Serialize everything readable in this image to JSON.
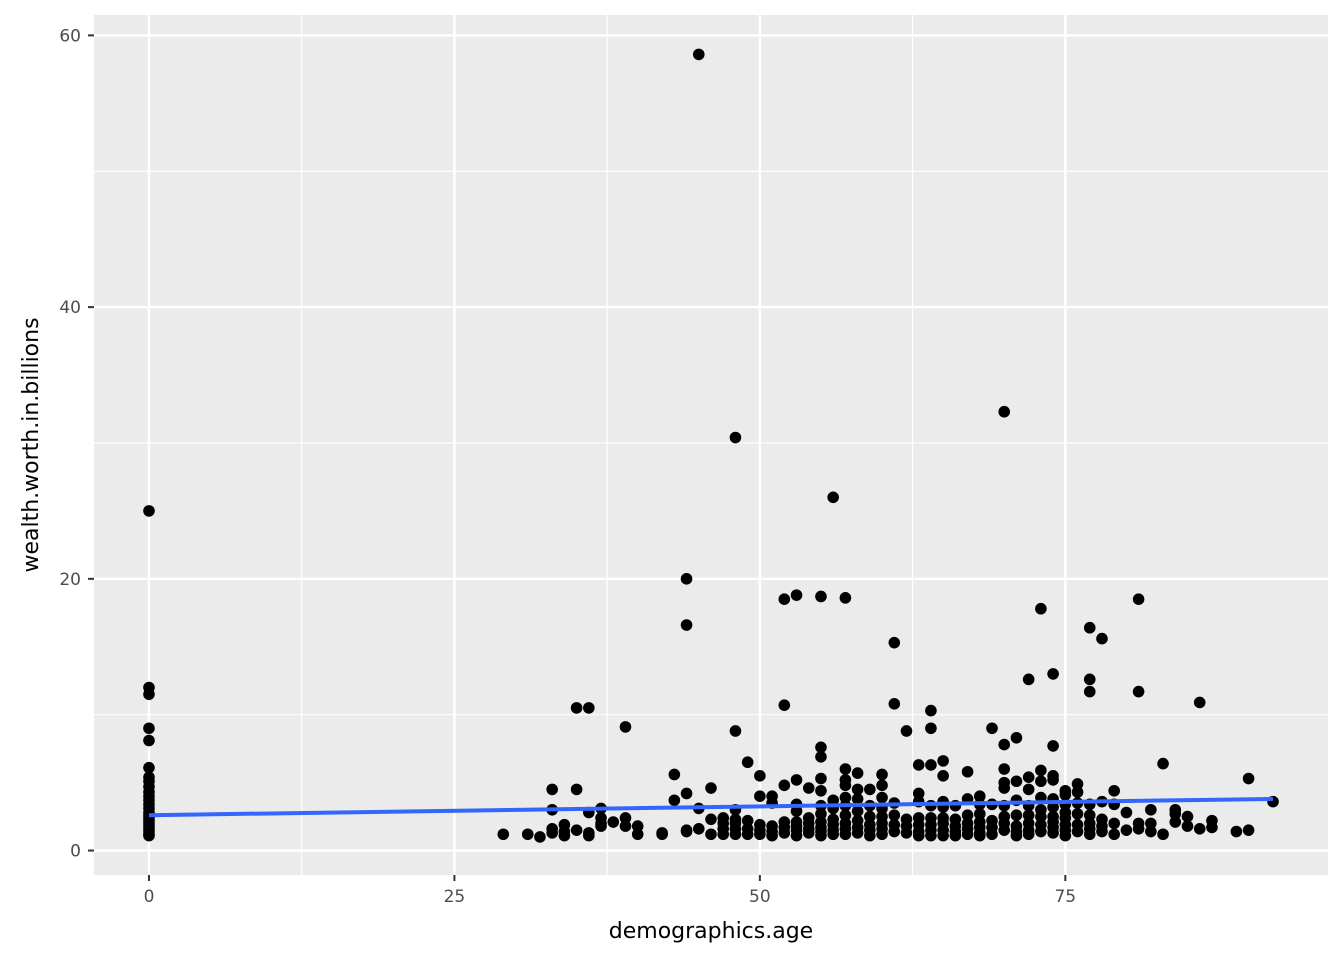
{
  "chart_data": {
    "type": "scatter",
    "title": "",
    "xlabel": "demographics.age",
    "ylabel": "wealth.worth.in.billions",
    "xlim": [
      -4.5,
      96.5
    ],
    "ylim": [
      -1.8,
      61.5
    ],
    "x_ticks": [
      0,
      25,
      50,
      75
    ],
    "x_tick_labels": [
      "0",
      "25",
      "50",
      "75"
    ],
    "y_ticks": [
      0,
      20,
      40,
      60
    ],
    "y_tick_labels": [
      "0",
      "20",
      "40",
      "60"
    ],
    "grid": true,
    "panel_background": "#ebebeb",
    "grid_color": "#ffffff",
    "point_color": "#000000",
    "trend_line": {
      "method": "linear",
      "color": "#3366ff",
      "x": [
        0,
        92
      ],
      "y": [
        2.6,
        3.8
      ]
    },
    "points": [
      [
        0,
        25.0
      ],
      [
        0,
        12.0
      ],
      [
        0,
        11.5
      ],
      [
        0,
        9.0
      ],
      [
        0,
        8.1
      ],
      [
        0,
        6.1
      ],
      [
        0,
        5.4
      ],
      [
        0,
        5.1
      ],
      [
        0,
        4.7
      ],
      [
        0,
        4.3
      ],
      [
        0,
        4.0
      ],
      [
        0,
        3.7
      ],
      [
        0,
        3.4
      ],
      [
        0,
        3.1
      ],
      [
        0,
        2.8
      ],
      [
        0,
        2.6
      ],
      [
        0,
        2.4
      ],
      [
        0,
        2.2
      ],
      [
        0,
        2.0
      ],
      [
        0,
        1.8
      ],
      [
        0,
        1.6
      ],
      [
        0,
        1.4
      ],
      [
        0,
        1.2
      ],
      [
        0,
        1.1
      ],
      [
        29,
        1.2
      ],
      [
        31,
        1.2
      ],
      [
        32,
        1.0
      ],
      [
        33,
        4.5
      ],
      [
        33,
        3.0
      ],
      [
        33,
        1.6
      ],
      [
        33,
        1.3
      ],
      [
        34,
        1.9
      ],
      [
        34,
        1.4
      ],
      [
        34,
        1.1
      ],
      [
        35,
        10.5
      ],
      [
        35,
        4.5
      ],
      [
        35,
        1.5
      ],
      [
        36,
        10.5
      ],
      [
        36,
        2.8
      ],
      [
        36,
        1.3
      ],
      [
        36,
        1.1
      ],
      [
        37,
        3.1
      ],
      [
        37,
        2.4
      ],
      [
        37,
        2.0
      ],
      [
        37,
        1.8
      ],
      [
        38,
        2.1
      ],
      [
        39,
        9.1
      ],
      [
        39,
        2.4
      ],
      [
        39,
        1.8
      ],
      [
        40,
        1.8
      ],
      [
        40,
        1.2
      ],
      [
        42,
        1.3
      ],
      [
        42,
        1.2
      ],
      [
        43,
        5.6
      ],
      [
        43,
        3.7
      ],
      [
        44,
        20.0
      ],
      [
        44,
        16.6
      ],
      [
        44,
        4.2
      ],
      [
        44,
        1.5
      ],
      [
        44,
        1.4
      ],
      [
        45,
        58.6
      ],
      [
        45,
        3.1
      ],
      [
        45,
        1.6
      ],
      [
        46,
        4.6
      ],
      [
        46,
        2.3
      ],
      [
        46,
        1.2
      ],
      [
        47,
        2.4
      ],
      [
        47,
        2.0
      ],
      [
        47,
        1.6
      ],
      [
        47,
        1.2
      ],
      [
        48,
        30.4
      ],
      [
        48,
        8.8
      ],
      [
        48,
        3.0
      ],
      [
        48,
        2.3
      ],
      [
        48,
        2.0
      ],
      [
        48,
        1.6
      ],
      [
        48,
        1.2
      ],
      [
        49,
        6.5
      ],
      [
        49,
        2.2
      ],
      [
        49,
        1.6
      ],
      [
        49,
        1.2
      ],
      [
        50,
        5.5
      ],
      [
        50,
        4.0
      ],
      [
        50,
        1.9
      ],
      [
        50,
        1.5
      ],
      [
        50,
        1.2
      ],
      [
        51,
        4.0
      ],
      [
        51,
        3.5
      ],
      [
        51,
        1.8
      ],
      [
        51,
        1.4
      ],
      [
        51,
        1.1
      ],
      [
        52,
        18.5
      ],
      [
        52,
        10.7
      ],
      [
        52,
        4.8
      ],
      [
        52,
        2.1
      ],
      [
        52,
        1.7
      ],
      [
        52,
        1.3
      ],
      [
        53,
        18.8
      ],
      [
        53,
        5.2
      ],
      [
        53,
        3.4
      ],
      [
        53,
        2.9
      ],
      [
        53,
        2.1
      ],
      [
        53,
        1.8
      ],
      [
        53,
        1.5
      ],
      [
        53,
        1.1
      ],
      [
        54,
        4.6
      ],
      [
        54,
        2.4
      ],
      [
        54,
        2.0
      ],
      [
        54,
        1.6
      ],
      [
        54,
        1.3
      ],
      [
        55,
        18.7
      ],
      [
        55,
        7.6
      ],
      [
        55,
        6.9
      ],
      [
        55,
        5.3
      ],
      [
        55,
        4.4
      ],
      [
        55,
        3.3
      ],
      [
        55,
        2.7
      ],
      [
        55,
        2.1
      ],
      [
        55,
        1.7
      ],
      [
        55,
        1.4
      ],
      [
        55,
        1.1
      ],
      [
        56,
        26.0
      ],
      [
        56,
        3.7
      ],
      [
        56,
        3.1
      ],
      [
        56,
        2.3
      ],
      [
        56,
        1.9
      ],
      [
        56,
        1.5
      ],
      [
        56,
        1.2
      ],
      [
        57,
        18.6
      ],
      [
        57,
        6.0
      ],
      [
        57,
        5.2
      ],
      [
        57,
        4.8
      ],
      [
        57,
        3.9
      ],
      [
        57,
        3.3
      ],
      [
        57,
        2.6
      ],
      [
        57,
        2.0
      ],
      [
        57,
        1.6
      ],
      [
        57,
        1.2
      ],
      [
        58,
        5.7
      ],
      [
        58,
        4.5
      ],
      [
        58,
        3.8
      ],
      [
        58,
        2.9
      ],
      [
        58,
        2.2
      ],
      [
        58,
        1.7
      ],
      [
        58,
        1.3
      ],
      [
        59,
        4.5
      ],
      [
        59,
        3.3
      ],
      [
        59,
        2.5
      ],
      [
        59,
        1.9
      ],
      [
        59,
        1.5
      ],
      [
        59,
        1.1
      ],
      [
        60,
        5.6
      ],
      [
        60,
        4.8
      ],
      [
        60,
        3.9
      ],
      [
        60,
        3.1
      ],
      [
        60,
        2.5
      ],
      [
        60,
        2.0
      ],
      [
        60,
        1.6
      ],
      [
        60,
        1.2
      ],
      [
        61,
        15.3
      ],
      [
        61,
        10.8
      ],
      [
        61,
        3.5
      ],
      [
        61,
        2.6
      ],
      [
        61,
        1.9
      ],
      [
        61,
        1.4
      ],
      [
        62,
        8.8
      ],
      [
        62,
        2.3
      ],
      [
        62,
        1.8
      ],
      [
        62,
        1.3
      ],
      [
        63,
        6.3
      ],
      [
        63,
        4.2
      ],
      [
        63,
        3.6
      ],
      [
        63,
        2.4
      ],
      [
        63,
        1.9
      ],
      [
        63,
        1.4
      ],
      [
        63,
        1.1
      ],
      [
        64,
        10.3
      ],
      [
        64,
        9.0
      ],
      [
        64,
        6.3
      ],
      [
        64,
        3.3
      ],
      [
        64,
        2.4
      ],
      [
        64,
        1.9
      ],
      [
        64,
        1.5
      ],
      [
        64,
        1.1
      ],
      [
        65,
        6.6
      ],
      [
        65,
        5.5
      ],
      [
        65,
        3.6
      ],
      [
        65,
        3.2
      ],
      [
        65,
        2.4
      ],
      [
        65,
        2.0
      ],
      [
        65,
        1.5
      ],
      [
        65,
        1.1
      ],
      [
        66,
        3.3
      ],
      [
        66,
        2.3
      ],
      [
        66,
        1.8
      ],
      [
        66,
        1.4
      ],
      [
        66,
        1.1
      ],
      [
        67,
        5.8
      ],
      [
        67,
        3.8
      ],
      [
        67,
        2.6
      ],
      [
        67,
        2.0
      ],
      [
        67,
        1.6
      ],
      [
        67,
        1.2
      ],
      [
        68,
        4.0
      ],
      [
        68,
        3.4
      ],
      [
        68,
        2.7
      ],
      [
        68,
        2.1
      ],
      [
        68,
        1.7
      ],
      [
        68,
        1.3
      ],
      [
        68,
        1.1
      ],
      [
        69,
        9.0
      ],
      [
        69,
        3.4
      ],
      [
        69,
        2.2
      ],
      [
        69,
        1.7
      ],
      [
        69,
        1.2
      ],
      [
        70,
        32.3
      ],
      [
        70,
        7.8
      ],
      [
        70,
        6.0
      ],
      [
        70,
        5.0
      ],
      [
        70,
        4.6
      ],
      [
        70,
        3.3
      ],
      [
        70,
        2.5
      ],
      [
        70,
        2.0
      ],
      [
        70,
        1.5
      ],
      [
        71,
        8.3
      ],
      [
        71,
        5.1
      ],
      [
        71,
        3.7
      ],
      [
        71,
        2.6
      ],
      [
        71,
        1.8
      ],
      [
        71,
        1.4
      ],
      [
        71,
        1.1
      ],
      [
        72,
        12.6
      ],
      [
        72,
        5.4
      ],
      [
        72,
        4.5
      ],
      [
        72,
        3.3
      ],
      [
        72,
        2.6
      ],
      [
        72,
        2.0
      ],
      [
        72,
        1.5
      ],
      [
        72,
        1.2
      ],
      [
        73,
        17.8
      ],
      [
        73,
        5.9
      ],
      [
        73,
        5.1
      ],
      [
        73,
        3.9
      ],
      [
        73,
        3.0
      ],
      [
        73,
        2.5
      ],
      [
        73,
        1.9
      ],
      [
        73,
        1.4
      ],
      [
        74,
        13.0
      ],
      [
        74,
        7.7
      ],
      [
        74,
        5.5
      ],
      [
        74,
        5.2
      ],
      [
        74,
        3.8
      ],
      [
        74,
        3.2
      ],
      [
        74,
        2.5
      ],
      [
        74,
        2.1
      ],
      [
        74,
        1.7
      ],
      [
        74,
        1.3
      ],
      [
        75,
        4.4
      ],
      [
        75,
        4.1
      ],
      [
        75,
        3.4
      ],
      [
        75,
        2.8
      ],
      [
        75,
        2.4
      ],
      [
        75,
        1.9
      ],
      [
        75,
        1.5
      ],
      [
        75,
        1.1
      ],
      [
        76,
        4.9
      ],
      [
        76,
        4.3
      ],
      [
        76,
        3.5
      ],
      [
        76,
        2.7
      ],
      [
        76,
        1.9
      ],
      [
        76,
        1.4
      ],
      [
        77,
        16.4
      ],
      [
        77,
        12.6
      ],
      [
        77,
        11.7
      ],
      [
        77,
        3.4
      ],
      [
        77,
        2.6
      ],
      [
        77,
        2.0
      ],
      [
        77,
        1.6
      ],
      [
        77,
        1.2
      ],
      [
        78,
        15.6
      ],
      [
        78,
        3.6
      ],
      [
        78,
        2.3
      ],
      [
        78,
        1.8
      ],
      [
        78,
        1.4
      ],
      [
        79,
        4.4
      ],
      [
        79,
        3.4
      ],
      [
        79,
        2.0
      ],
      [
        79,
        1.2
      ],
      [
        80,
        2.8
      ],
      [
        80,
        1.5
      ],
      [
        81,
        18.5
      ],
      [
        81,
        11.7
      ],
      [
        81,
        2.0
      ],
      [
        81,
        1.6
      ],
      [
        82,
        3.0
      ],
      [
        82,
        2.0
      ],
      [
        82,
        1.4
      ],
      [
        83,
        6.4
      ],
      [
        83,
        1.2
      ],
      [
        84,
        3.0
      ],
      [
        84,
        2.7
      ],
      [
        84,
        2.1
      ],
      [
        85,
        2.5
      ],
      [
        85,
        1.8
      ],
      [
        86,
        10.9
      ],
      [
        86,
        1.6
      ],
      [
        87,
        2.2
      ],
      [
        87,
        1.7
      ],
      [
        89,
        1.4
      ],
      [
        90,
        5.3
      ],
      [
        90,
        1.5
      ],
      [
        92,
        3.6
      ]
    ]
  }
}
